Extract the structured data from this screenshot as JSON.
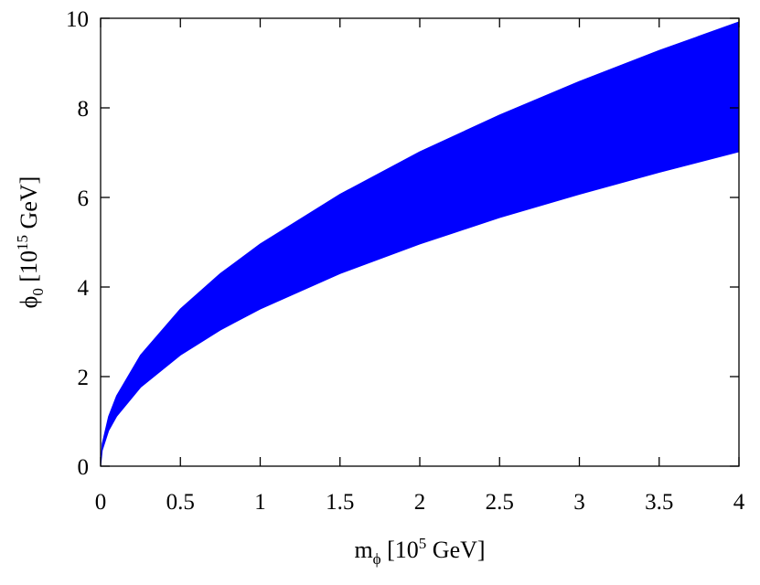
{
  "chart_data": {
    "type": "area",
    "title": "",
    "xlabel": {
      "main": "m",
      "sub": "ϕ",
      "bracket_open": " [10",
      "sup": "5",
      "unit": " GeV]"
    },
    "ylabel": {
      "main": "ϕ",
      "sub": "0",
      "bracket_open": " [10",
      "sup": "15",
      "unit": " GeV]"
    },
    "xlim": [
      0,
      4
    ],
    "ylim": [
      0,
      10
    ],
    "xticks": [
      0,
      0.5,
      1,
      1.5,
      2,
      2.5,
      3,
      3.5,
      4
    ],
    "xtick_labels": [
      "0",
      "0.5",
      "1",
      "1.5",
      "2",
      "2.5",
      "3",
      "3.5",
      "4"
    ],
    "yticks": [
      0,
      2,
      4,
      6,
      8,
      10
    ],
    "ytick_labels": [
      "0",
      "2",
      "4",
      "6",
      "8",
      "10"
    ],
    "grid": false,
    "legend": "none",
    "band_color": "#0000ff",
    "band": {
      "x": [
        0,
        0.01,
        0.05,
        0.1,
        0.25,
        0.5,
        0.75,
        1,
        1.5,
        2,
        2.5,
        3,
        3.5,
        4
      ],
      "upper": [
        0,
        0.5,
        1.11,
        1.57,
        2.48,
        3.51,
        4.3,
        4.96,
        6.07,
        7.02,
        7.84,
        8.59,
        9.28,
        9.92
      ],
      "lower": [
        0,
        0.35,
        0.79,
        1.11,
        1.76,
        2.48,
        3.04,
        3.51,
        4.3,
        4.96,
        5.55,
        6.07,
        6.56,
        7.02
      ]
    }
  }
}
